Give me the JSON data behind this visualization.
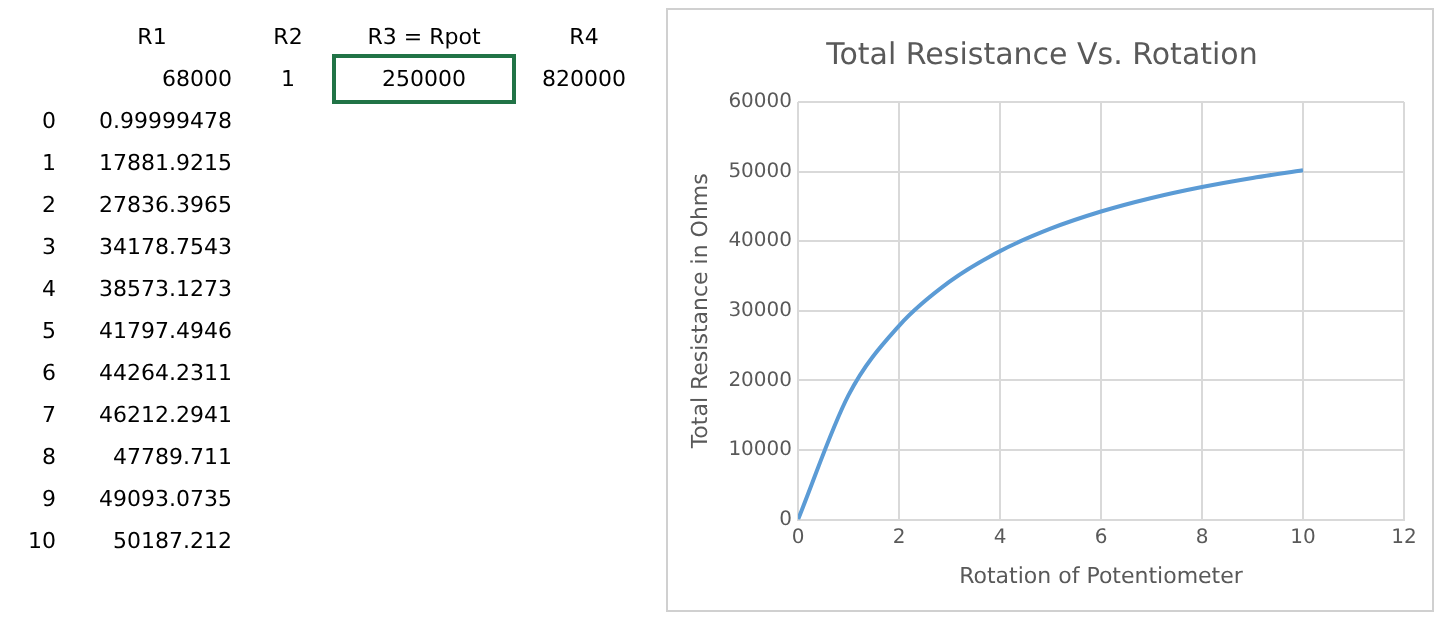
{
  "chart_data": {
    "type": "line",
    "title": "Total Resistance Vs. Rotation",
    "xlabel": "Rotation of Potentiometer",
    "ylabel": "Total Resistance in Ohms",
    "annotations": [
      "R1",
      "R2",
      "R3 = Rpot",
      "R4",
      "68000",
      "1",
      "250000",
      "820000",
      "0",
      "0.99999478",
      "1",
      "17881.9215",
      "2",
      "27836.3965",
      "3",
      "34178.7543",
      "4",
      "38573.1273",
      "5",
      "41797.4946",
      "6",
      "44264.2311",
      "7",
      "46212.2941",
      "8",
      "47789.711",
      "9",
      "49093.0735",
      "10",
      "50187.212"
    ],
    "x": [
      0,
      1,
      2,
      3,
      4,
      5,
      6,
      7,
      8,
      9,
      10
    ],
    "series": [
      {
        "color": "#5b9bd5",
        "values": [
          0.99999478,
          17881.9215,
          27836.3965,
          34178.7543,
          38573.1273,
          41797.4946,
          44264.2311,
          46212.2941,
          47789.711,
          49093.0735,
          50187.212
        ]
      }
    ],
    "xlim": [
      0,
      12
    ],
    "xticks": [
      0,
      2,
      4,
      6,
      8,
      10,
      12
    ],
    "ylim": [
      0,
      60000
    ],
    "yticks": [
      0,
      10000,
      20000,
      30000,
      40000,
      50000,
      60000
    ],
    "grid": true,
    "legend": false,
    "marker": "none",
    "line_style": "solid"
  }
}
